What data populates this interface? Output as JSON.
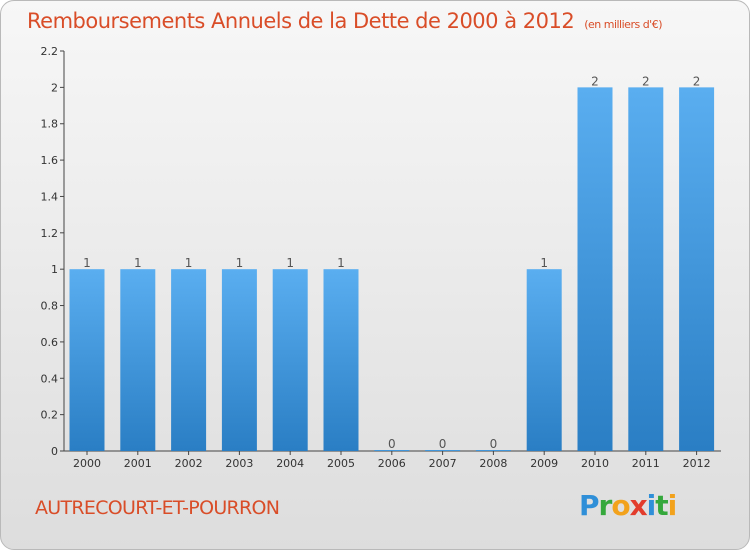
{
  "title": "Remboursements Annuels de la Dette de 2000 à 2012",
  "subtitle": "(en milliers d'€)",
  "commune": "AUTRECOURT-ET-POURRON",
  "logo": {
    "letters": [
      "P",
      "r",
      "o",
      "x",
      "i",
      "t",
      "i"
    ],
    "colors": [
      "#2f8fd8",
      "#35a83c",
      "#f2a21c",
      "#e23c2c",
      "#2f8fd8",
      "#35a83c",
      "#f2a21c"
    ]
  },
  "colors": {
    "bar_top": "#5aaef0",
    "bar_bottom": "#2a7ec4",
    "text": "#d94d28",
    "axis": "#444444"
  },
  "chart_data": {
    "type": "bar",
    "title": "Remboursements Annuels de la Dette de 2000 à 2012",
    "subtitle": "(en milliers d'€)",
    "categories": [
      "2000",
      "2001",
      "2002",
      "2003",
      "2004",
      "2005",
      "2006",
      "2007",
      "2008",
      "2009",
      "2010",
      "2011",
      "2012"
    ],
    "values": [
      1,
      1,
      1,
      1,
      1,
      1,
      0,
      0,
      0,
      1,
      2,
      2,
      2
    ],
    "data_labels": [
      "1",
      "1",
      "1",
      "1",
      "1",
      "1",
      "0",
      "0",
      "0",
      "1",
      "2",
      "2",
      "2"
    ],
    "yticks": [
      "0",
      "0.2",
      "0.4",
      "0.6",
      "0.8",
      "1",
      "1.2",
      "1.4",
      "1.6",
      "1.8",
      "2",
      "2.2"
    ],
    "ylim": [
      0,
      2.2
    ],
    "xlabel": "",
    "ylabel": "",
    "grid": false,
    "legend": "none"
  }
}
